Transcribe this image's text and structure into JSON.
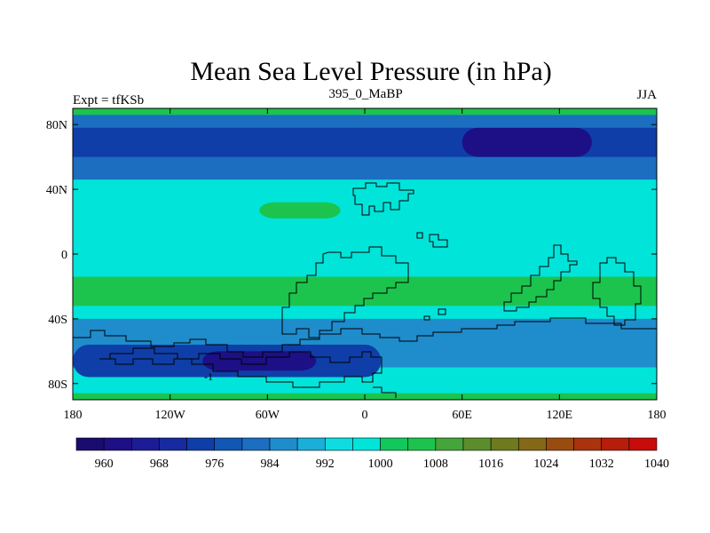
{
  "chart_data": {
    "type": "heatmap",
    "title": "Mean Sea Level Pressure (in hPa)",
    "left_label": "Expt = tfKSb",
    "center_label": "395_0_MaBP",
    "right_label": "JJA",
    "xlim": [
      -180,
      180
    ],
    "ylim": [
      -90,
      90
    ],
    "x_ticks": [
      {
        "value": -180,
        "label": "180"
      },
      {
        "value": -120,
        "label": "120W"
      },
      {
        "value": -60,
        "label": "60W"
      },
      {
        "value": 0,
        "label": "0"
      },
      {
        "value": 60,
        "label": "60E"
      },
      {
        "value": 120,
        "label": "120E"
      },
      {
        "value": 180,
        "label": "180"
      }
    ],
    "y_ticks": [
      {
        "value": 80,
        "label": "80N"
      },
      {
        "value": 40,
        "label": "40N"
      },
      {
        "value": 0,
        "label": "0"
      },
      {
        "value": -40,
        "label": "40S"
      },
      {
        "value": -80,
        "label": "80S"
      }
    ],
    "colorbar": {
      "levels": [
        960,
        964,
        968,
        972,
        976,
        980,
        984,
        988,
        992,
        996,
        1000,
        1004,
        1008,
        1012,
        1016,
        1020,
        1024,
        1028,
        1032,
        1036,
        1040
      ],
      "colors": [
        "#1a0c6e",
        "#1d0f85",
        "#1b1c96",
        "#172aa0",
        "#0f3ea8",
        "#1157b4",
        "#1b6ec0",
        "#1f8ccc",
        "#1aafd8",
        "#0fdce0",
        "#00e4da",
        "#12c85a",
        "#1cc44d",
        "#45a43a",
        "#5b8e2a",
        "#6e7a1c",
        "#856815",
        "#9a4c0f",
        "#a8330c",
        "#b71d0b",
        "#c80c0c"
      ],
      "labels": [
        "960",
        "968",
        "976",
        "984",
        "992",
        "1000",
        "1008",
        "1016",
        "1024",
        "1032",
        "1040"
      ]
    },
    "fields": [
      {
        "name": "background",
        "value": 997
      },
      {
        "name": "pole-north-edge",
        "value": 1004,
        "lat": [
          86,
          90
        ],
        "lon": [
          -180,
          180
        ]
      },
      {
        "name": "north-low-belt",
        "value": 983,
        "lat": [
          46,
          86
        ],
        "lon": [
          -180,
          180
        ]
      },
      {
        "name": "north-deep-low",
        "value": 975,
        "lat": [
          60,
          78
        ],
        "lon": [
          -180,
          180
        ]
      },
      {
        "name": "north-core-low",
        "value": 962,
        "lat": [
          60,
          78
        ],
        "lon": [
          60,
          140
        ]
      },
      {
        "name": "north-high-patch",
        "value": 1006,
        "lat": [
          22,
          32
        ],
        "lon": [
          -65,
          -15
        ]
      },
      {
        "name": "subtropic-high-belt",
        "value": 1006,
        "lat": [
          -32,
          -14
        ],
        "lon": [
          -180,
          180
        ]
      },
      {
        "name": "south-low-belt",
        "value": 985,
        "lat": [
          -70,
          -40
        ],
        "lon": [
          -180,
          180
        ]
      },
      {
        "name": "south-deep-low",
        "value": 972,
        "lat": [
          -76,
          -56
        ],
        "lon": [
          -180,
          10
        ]
      },
      {
        "name": "south-core-low",
        "value": 963,
        "lat": [
          -72,
          -60
        ],
        "lon": [
          -100,
          -30
        ]
      },
      {
        "name": "pole-south-edge",
        "value": 1004,
        "lat": [
          -90,
          -86
        ],
        "lon": [
          -180,
          180
        ]
      }
    ],
    "contour_label": "-1"
  }
}
